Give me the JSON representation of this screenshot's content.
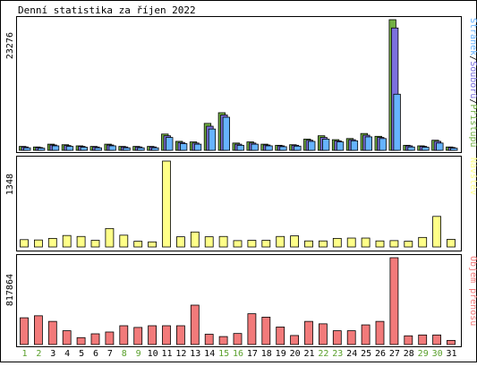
{
  "title": "Denní statistika za říjen 2022",
  "colors": {
    "hits": "#72b043",
    "files": "#7b70dd",
    "pages": "#66b3ff",
    "visits": "#ffff88",
    "volume": "#f27a7a",
    "frame": "#000000",
    "background": "#ffffff",
    "day_weekday": "#000000",
    "day_weekend": "#5aa02c"
  },
  "chart_data": [
    {
      "type": "bar",
      "panel": "top",
      "ymax_label": "23276",
      "ylim": [
        0,
        23276
      ],
      "legend": [
        {
          "name": "Stránek",
          "color": "#66b3ff"
        },
        {
          "name": "Souborů",
          "color": "#7b70dd"
        },
        {
          "name": "Přístupů",
          "color": "#72b043"
        }
      ],
      "legend_separator": "/",
      "legend_placement": "right",
      "categories": [
        "1",
        "2",
        "3",
        "4",
        "5",
        "6",
        "7",
        "8",
        "9",
        "10",
        "11",
        "12",
        "13",
        "14",
        "15",
        "16",
        "17",
        "18",
        "19",
        "20",
        "21",
        "22",
        "23",
        "24",
        "25",
        "26",
        "27",
        "28",
        "29",
        "30",
        "31"
      ],
      "series": [
        {
          "name": "Přístupů",
          "values": [
            700,
            600,
            1100,
            1000,
            800,
            700,
            1100,
            700,
            700,
            700,
            2900,
            1600,
            1500,
            4800,
            6700,
            1300,
            1500,
            1100,
            900,
            1000,
            2000,
            2600,
            1900,
            2100,
            3000,
            2500,
            23276,
            900,
            800,
            1800,
            600
          ]
        },
        {
          "name": "Souborů",
          "values": [
            600,
            500,
            950,
            850,
            700,
            600,
            950,
            600,
            600,
            600,
            2600,
            1400,
            1300,
            4300,
            6300,
            1100,
            1300,
            950,
            800,
            900,
            1800,
            2300,
            1700,
            1900,
            2700,
            2300,
            21800,
            800,
            700,
            1600,
            500
          ]
        },
        {
          "name": "Stránek",
          "values": [
            450,
            380,
            800,
            700,
            550,
            450,
            800,
            450,
            450,
            450,
            2300,
            1200,
            1100,
            3800,
            5900,
            900,
            1100,
            800,
            650,
            750,
            1600,
            2000,
            1500,
            1700,
            2400,
            2100,
            10000,
            600,
            550,
            1300,
            380
          ]
        }
      ]
    },
    {
      "type": "bar",
      "panel": "middle",
      "ymax_label": "1348",
      "ylim": [
        0,
        1348
      ],
      "legend": [
        {
          "name": "Návštěv",
          "color": "#ffff88"
        }
      ],
      "legend_placement": "right",
      "categories": [
        "1",
        "2",
        "3",
        "4",
        "5",
        "6",
        "7",
        "8",
        "9",
        "10",
        "11",
        "12",
        "13",
        "14",
        "15",
        "16",
        "17",
        "18",
        "19",
        "20",
        "21",
        "22",
        "23",
        "24",
        "25",
        "26",
        "27",
        "28",
        "29",
        "30",
        "31"
      ],
      "series": [
        {
          "name": "Návštěv",
          "values": [
            115,
            110,
            135,
            180,
            165,
            105,
            290,
            185,
            90,
            80,
            1348,
            160,
            235,
            160,
            165,
            100,
            105,
            105,
            165,
            175,
            95,
            95,
            135,
            140,
            140,
            95,
            100,
            90,
            150,
            480,
            120
          ]
        }
      ]
    },
    {
      "type": "bar",
      "panel": "bottom",
      "ymax_label": "817864",
      "ylim": [
        0,
        817864
      ],
      "legend": [
        {
          "name": "Objem přenosu",
          "color": "#f27a7a"
        }
      ],
      "legend_placement": "right",
      "categories": [
        "1",
        "2",
        "3",
        "4",
        "5",
        "6",
        "7",
        "8",
        "9",
        "10",
        "11",
        "12",
        "13",
        "14",
        "15",
        "16",
        "17",
        "18",
        "19",
        "20",
        "21",
        "22",
        "23",
        "24",
        "25",
        "26",
        "27",
        "28",
        "29",
        "30",
        "31"
      ],
      "series": [
        {
          "name": "Objem přenosu",
          "values": [
            252000,
            271000,
            218000,
            130000,
            65000,
            101000,
            118000,
            177000,
            161000,
            177000,
            177000,
            177000,
            371000,
            97000,
            75000,
            104000,
            290000,
            258000,
            165000,
            85000,
            218000,
            195000,
            130000,
            130000,
            185000,
            218000,
            817864,
            82000,
            90000,
            90000,
            39000
          ]
        }
      ]
    }
  ],
  "x_axis": {
    "labels": [
      "1",
      "2",
      "3",
      "4",
      "5",
      "6",
      "7",
      "8",
      "9",
      "10",
      "11",
      "12",
      "13",
      "14",
      "15",
      "16",
      "17",
      "18",
      "19",
      "20",
      "21",
      "22",
      "23",
      "24",
      "25",
      "26",
      "27",
      "28",
      "29",
      "30",
      "31"
    ],
    "weekend": [
      true,
      true,
      false,
      false,
      false,
      false,
      false,
      true,
      true,
      false,
      false,
      false,
      false,
      false,
      true,
      true,
      false,
      false,
      false,
      false,
      false,
      true,
      true,
      false,
      false,
      false,
      false,
      false,
      true,
      true,
      false
    ]
  }
}
